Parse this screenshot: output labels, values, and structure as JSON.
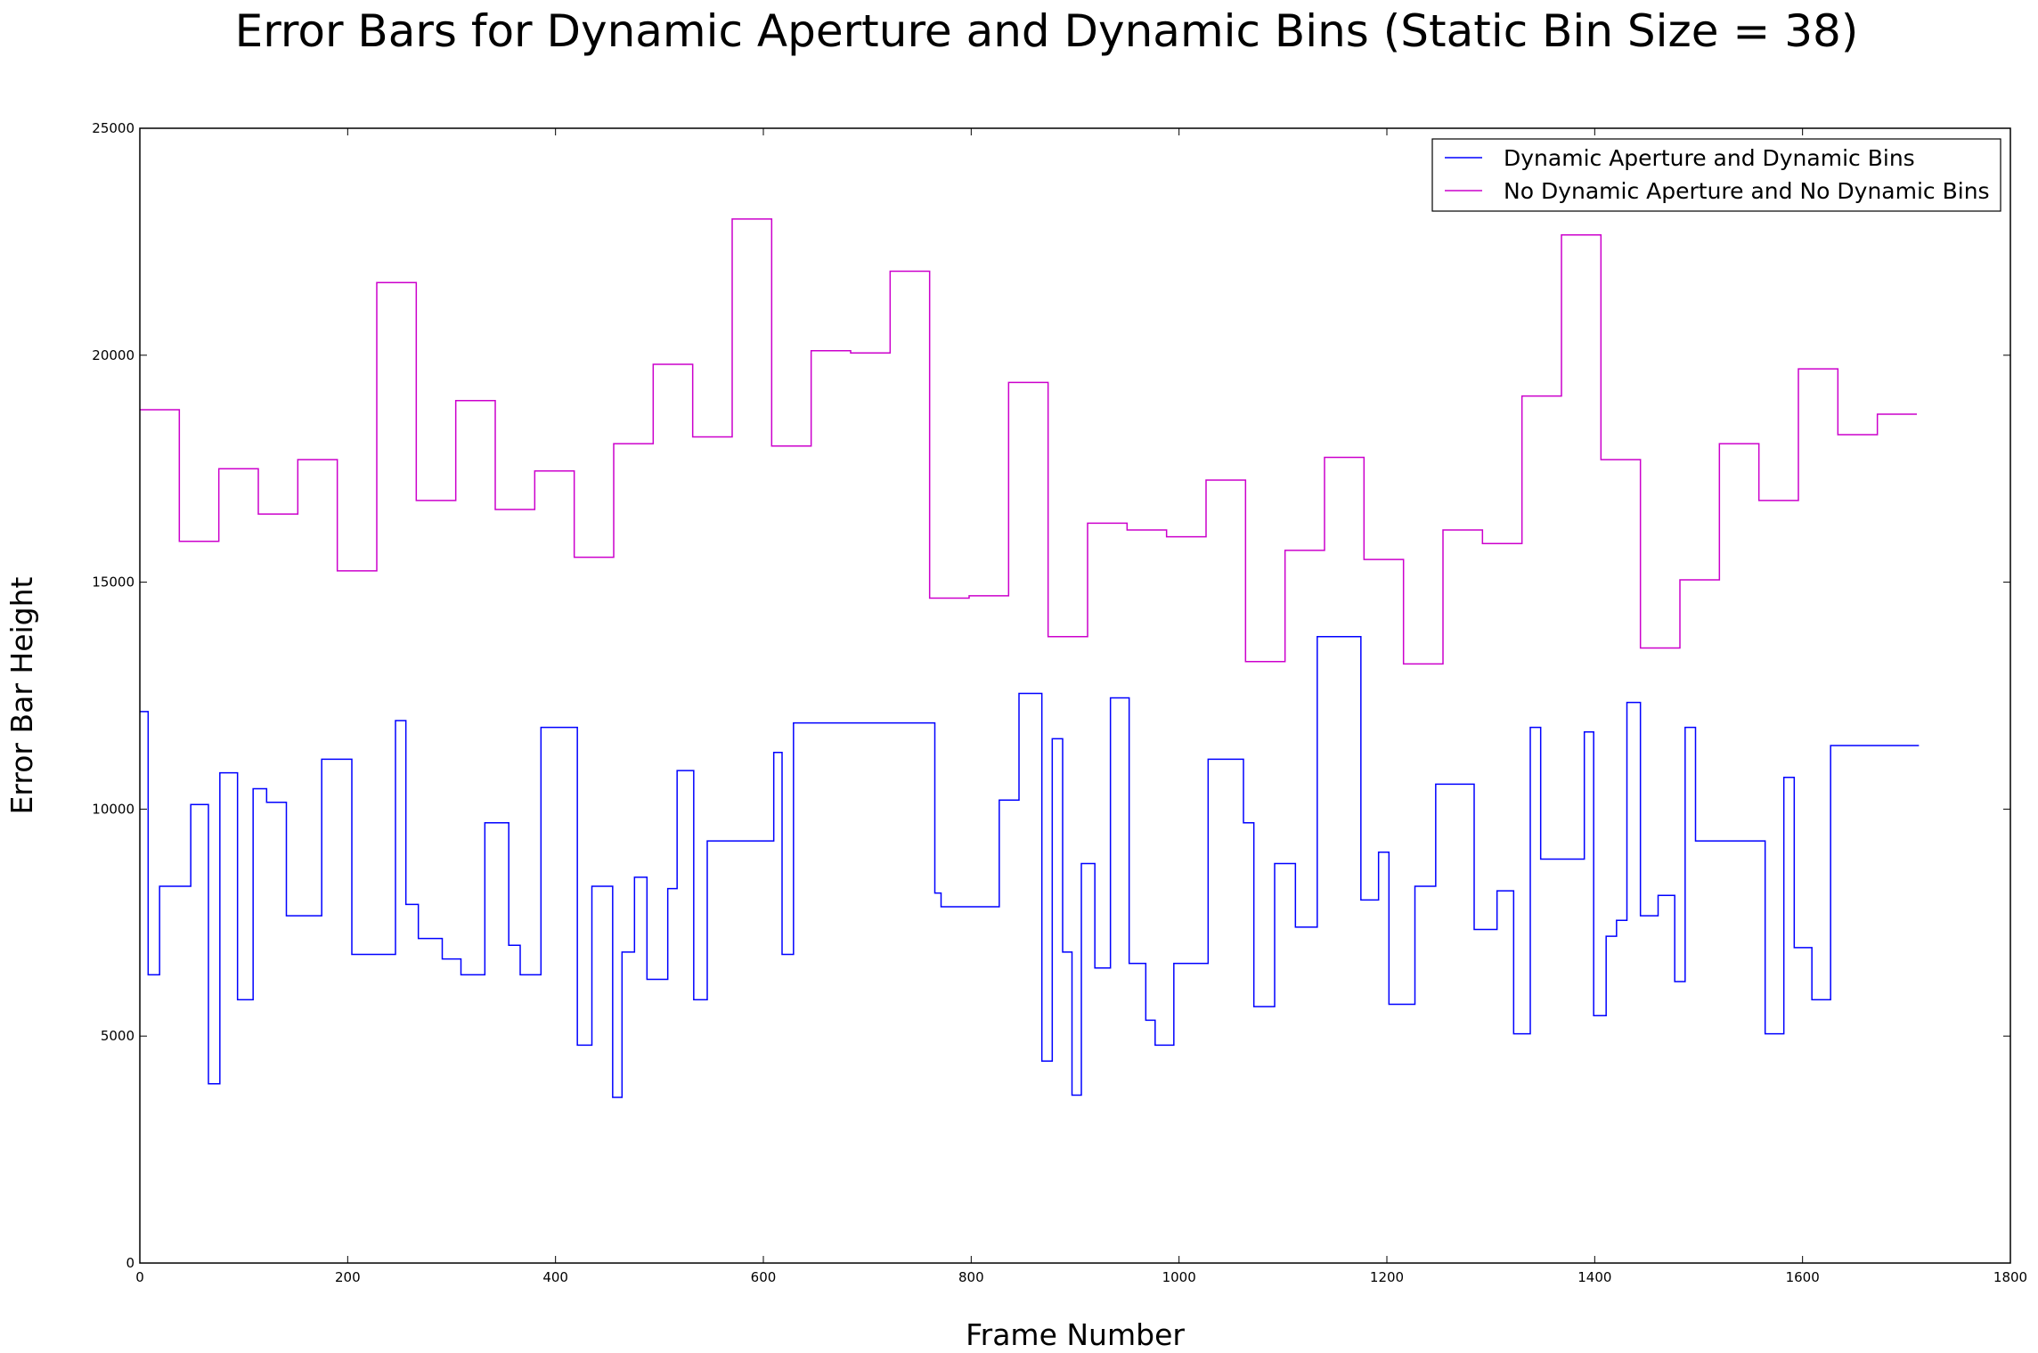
{
  "chart_data": {
    "type": "line",
    "title": "Error Bars for Dynamic Aperture and Dynamic Bins (Static Bin Size = 38)",
    "xlabel": "Frame Number",
    "ylabel": "Error Bar Height",
    "xlim": [
      0,
      1800
    ],
    "ylim": [
      0,
      25000
    ],
    "xticks": [
      0,
      200,
      400,
      600,
      800,
      1000,
      1200,
      1400,
      1600,
      1800
    ],
    "yticks": [
      0,
      5000,
      10000,
      15000,
      20000,
      25000
    ],
    "legend_position": "top-right",
    "grid": false,
    "series": [
      {
        "name": "Dynamic Aperture and Dynamic Bins",
        "color": "#0000ff",
        "step": true,
        "x": [
          0,
          8,
          19,
          49,
          66,
          77,
          94,
          109,
          122,
          141,
          175,
          204,
          246,
          256,
          268,
          291,
          309,
          332,
          355,
          366,
          386,
          421,
          435,
          455,
          464,
          476,
          488,
          508,
          517,
          533,
          546,
          610,
          618,
          629,
          765,
          771,
          827,
          846,
          868,
          878,
          888,
          897,
          906,
          919,
          934,
          952,
          968,
          977,
          995,
          1028,
          1062,
          1072,
          1092,
          1112,
          1133,
          1175,
          1192,
          1202,
          1227,
          1247,
          1284,
          1306,
          1322,
          1338,
          1348,
          1390,
          1399,
          1411,
          1421,
          1431,
          1444,
          1461,
          1477,
          1487,
          1497,
          1564,
          1582,
          1592,
          1609,
          1627,
          1712
        ],
        "y": [
          12150,
          6350,
          8300,
          10100,
          3950,
          10800,
          5800,
          10450,
          10150,
          7650,
          11100,
          6800,
          11950,
          7900,
          7150,
          6700,
          6350,
          9700,
          7000,
          6350,
          11800,
          4800,
          8300,
          3650,
          6850,
          8500,
          6250,
          8250,
          10850,
          5800,
          9300,
          11250,
          6800,
          11900,
          8150,
          7850,
          10200,
          12550,
          4450,
          11550,
          6850,
          3700,
          8800,
          6500,
          12450,
          6600,
          5350,
          4800,
          6600,
          11100,
          9700,
          5650,
          8800,
          7400,
          13800,
          8000,
          9050,
          5700,
          8300,
          10550,
          7350,
          8200,
          5050,
          11800,
          8900,
          11700,
          5450,
          7200,
          7550,
          12350,
          7650,
          8100,
          6200,
          11800,
          9300,
          5050,
          10700,
          6950,
          5800,
          11400,
          11400
        ]
      },
      {
        "name": "No Dynamic Aperture and No Dynamic Bins",
        "color": "#cc00cc",
        "step": true,
        "x": [
          0,
          38,
          76,
          114,
          152,
          190,
          228,
          266,
          304,
          342,
          380,
          418,
          456,
          494,
          532,
          570,
          608,
          646,
          684,
          722,
          760,
          798,
          836,
          874,
          912,
          950,
          988,
          1026,
          1064,
          1102,
          1140,
          1178,
          1216,
          1254,
          1292,
          1330,
          1368,
          1406,
          1444,
          1482,
          1520,
          1558,
          1596,
          1634,
          1672,
          1710
        ],
        "y": [
          18800,
          15900,
          17500,
          16500,
          17700,
          15250,
          21600,
          16800,
          19000,
          16600,
          17450,
          15550,
          18050,
          19800,
          18200,
          23000,
          18000,
          20100,
          20050,
          21850,
          14650,
          14700,
          19400,
          13800,
          16300,
          16150,
          16000,
          17250,
          13250,
          15700,
          17750,
          15500,
          13200,
          16150,
          15850,
          19100,
          22650,
          17700,
          13550,
          15050,
          18050,
          16800,
          19700,
          18250,
          18700,
          18700
        ]
      }
    ]
  }
}
